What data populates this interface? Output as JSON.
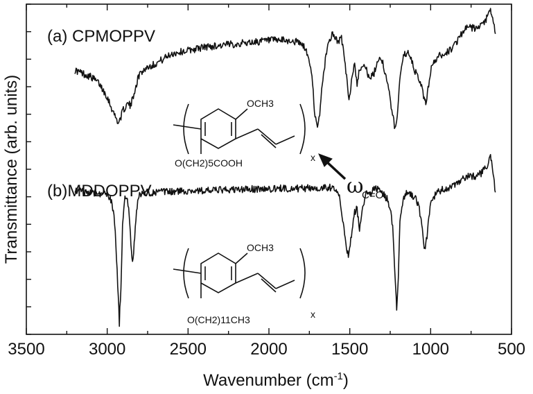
{
  "chart_data": {
    "type": "line",
    "xlabel": "Wavenumber (cm",
    "xlabel_sup": "-1",
    "xlabel_end": ")",
    "ylabel": "Transmittance (arb. units)",
    "xlim": [
      3500,
      500
    ],
    "xticks": [
      "3500",
      "3000",
      "2500",
      "2000",
      "1500",
      "1000",
      "500"
    ],
    "xtick_values": [
      3500,
      3000,
      2500,
      2000,
      1500,
      1000,
      500
    ],
    "ylim": [
      0,
      1
    ],
    "y_tick_count": 12,
    "grid": false,
    "annotation": {
      "symbol": "ω",
      "subscript": "C=O",
      "points_to_wavenumber": 1700
    },
    "series": [
      {
        "name": "(a) CPMOPPV",
        "structure_substituents": [
          "OCH3",
          "O(CH2)5COOH",
          "x"
        ],
        "x": [
          3200,
          3150,
          3100,
          3050,
          3000,
          2960,
          2930,
          2900,
          2870,
          2855,
          2830,
          2800,
          2750,
          2700,
          2600,
          2500,
          2400,
          2300,
          2200,
          2100,
          2000,
          1900,
          1820,
          1780,
          1750,
          1730,
          1715,
          1700,
          1690,
          1670,
          1640,
          1610,
          1590,
          1570,
          1555,
          1540,
          1520,
          1505,
          1490,
          1470,
          1455,
          1440,
          1420,
          1400,
          1380,
          1350,
          1320,
          1300,
          1280,
          1260,
          1240,
          1220,
          1210,
          1195,
          1180,
          1160,
          1140,
          1120,
          1100,
          1080,
          1060,
          1040,
          1030,
          1020,
          1000,
          960,
          920,
          880,
          850,
          820,
          800,
          760,
          720,
          680,
          650,
          630,
          620,
          610,
          600
        ],
        "y": [
          0.8,
          0.79,
          0.78,
          0.76,
          0.72,
          0.67,
          0.64,
          0.68,
          0.7,
          0.69,
          0.74,
          0.79,
          0.81,
          0.82,
          0.85,
          0.86,
          0.87,
          0.875,
          0.88,
          0.885,
          0.89,
          0.89,
          0.885,
          0.87,
          0.83,
          0.76,
          0.66,
          0.62,
          0.65,
          0.76,
          0.87,
          0.91,
          0.9,
          0.88,
          0.91,
          0.86,
          0.78,
          0.7,
          0.77,
          0.82,
          0.76,
          0.8,
          0.82,
          0.81,
          0.77,
          0.79,
          0.84,
          0.83,
          0.79,
          0.74,
          0.68,
          0.62,
          0.64,
          0.75,
          0.82,
          0.85,
          0.85,
          0.83,
          0.8,
          0.78,
          0.76,
          0.71,
          0.7,
          0.73,
          0.8,
          0.84,
          0.85,
          0.86,
          0.88,
          0.9,
          0.92,
          0.93,
          0.925,
          0.935,
          0.96,
          0.98,
          0.96,
          0.94,
          0.91
        ]
      },
      {
        "name": "(b)MDDOPPV",
        "structure_substituents": [
          "OCH3",
          "O(CH2)11CH3",
          "x"
        ],
        "x": [
          3200,
          3100,
          3000,
          2970,
          2950,
          2935,
          2925,
          2915,
          2905,
          2890,
          2875,
          2860,
          2850,
          2840,
          2830,
          2815,
          2800,
          2780,
          2750,
          2700,
          2600,
          2500,
          2400,
          2300,
          2200,
          2100,
          2000,
          1900,
          1800,
          1700,
          1650,
          1600,
          1580,
          1560,
          1540,
          1520,
          1505,
          1490,
          1470,
          1455,
          1440,
          1420,
          1400,
          1380,
          1350,
          1320,
          1300,
          1270,
          1250,
          1235,
          1220,
          1210,
          1200,
          1190,
          1170,
          1150,
          1130,
          1110,
          1090,
          1070,
          1055,
          1040,
          1030,
          1015,
          1000,
          960,
          920,
          880,
          850,
          820,
          800,
          760,
          720,
          680,
          650,
          630,
          620,
          610,
          600
        ],
        "y": [
          0.435,
          0.43,
          0.425,
          0.4,
          0.32,
          0.15,
          0.035,
          0.15,
          0.33,
          0.41,
          0.42,
          0.33,
          0.25,
          0.22,
          0.3,
          0.39,
          0.42,
          0.425,
          0.43,
          0.43,
          0.432,
          0.435,
          0.435,
          0.437,
          0.438,
          0.44,
          0.44,
          0.442,
          0.442,
          0.443,
          0.445,
          0.445,
          0.44,
          0.41,
          0.33,
          0.25,
          0.24,
          0.3,
          0.37,
          0.38,
          0.32,
          0.38,
          0.43,
          0.42,
          0.44,
          0.44,
          0.43,
          0.41,
          0.38,
          0.32,
          0.17,
          0.08,
          0.17,
          0.35,
          0.41,
          0.425,
          0.43,
          0.42,
          0.41,
          0.38,
          0.33,
          0.27,
          0.27,
          0.33,
          0.4,
          0.43,
          0.44,
          0.445,
          0.45,
          0.46,
          0.47,
          0.48,
          0.48,
          0.49,
          0.51,
          0.54,
          0.51,
          0.47,
          0.43
        ]
      }
    ]
  }
}
